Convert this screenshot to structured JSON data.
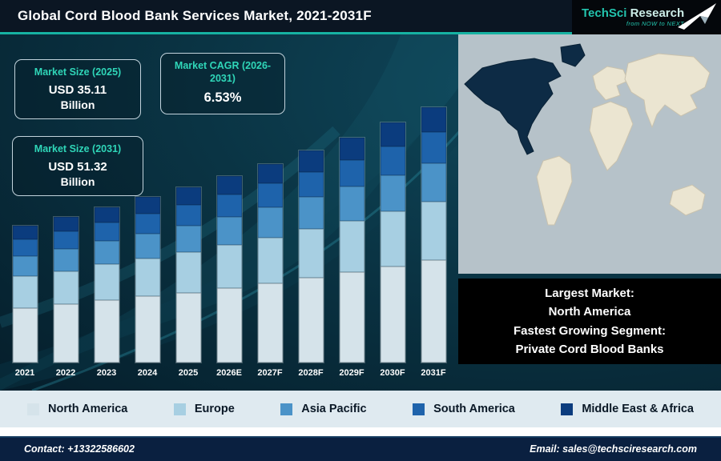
{
  "header": {
    "title": "Global Cord Blood Bank Services Market, 2021-2031F",
    "accent_color": "#16b2a2"
  },
  "logo": {
    "brand_primary": "TechSci",
    "brand_secondary": "Research",
    "tagline": "from NOW to NEXT"
  },
  "stats": [
    {
      "label": "Market Size (2025)",
      "value": "USD 35.11",
      "unit": "Billion"
    },
    {
      "label": "Market CAGR (2026-2031)",
      "value": "6.53%",
      "unit": ""
    },
    {
      "label": "Market Size (2031)",
      "value": "USD 51.32",
      "unit": "Billion"
    }
  ],
  "chart_data": {
    "type": "bar",
    "stacked": true,
    "title": "Global Cord Blood Bank Services Market, 2021-2031F",
    "categories": [
      "2021",
      "2022",
      "2023",
      "2024",
      "2025",
      "2026E",
      "2027F",
      "2028F",
      "2029F",
      "2030F",
      "2031F"
    ],
    "series": [
      {
        "name": "North America",
        "color": "#d5e3ea",
        "values": [
          11.0,
          11.7,
          12.5,
          13.3,
          14.0,
          15.0,
          15.9,
          17.0,
          18.1,
          19.3,
          20.5
        ]
      },
      {
        "name": "Europe",
        "color": "#a7cfe2",
        "values": [
          6.3,
          6.7,
          7.2,
          7.6,
          8.1,
          8.6,
          9.2,
          9.8,
          10.4,
          11.1,
          11.8
        ]
      },
      {
        "name": "Asia Pacific",
        "color": "#4b93c8",
        "values": [
          4.1,
          4.4,
          4.7,
          5.0,
          5.3,
          5.6,
          6.0,
          6.4,
          6.8,
          7.2,
          7.7
        ]
      },
      {
        "name": "South America",
        "color": "#1e63ab",
        "values": [
          3.3,
          3.5,
          3.7,
          4.0,
          4.2,
          4.5,
          4.8,
          5.1,
          5.4,
          5.8,
          6.2
        ]
      },
      {
        "name": "Middle East & Africa",
        "color": "#0b3c7e",
        "values": [
          2.8,
          3.0,
          3.1,
          3.3,
          3.5,
          3.7,
          4.0,
          4.2,
          4.5,
          4.8,
          5.1
        ]
      }
    ],
    "ylim": [
      0,
      53
    ],
    "grid": false,
    "legend_position": "bottom"
  },
  "map_note": {
    "lines": [
      "Largest Market:",
      "North America",
      "Fastest Growing Segment:",
      "Private Cord Blood Banks"
    ]
  },
  "footer": {
    "contact": "Contact: +13322586602",
    "email": "Email: sales@techsciresearch.com"
  }
}
